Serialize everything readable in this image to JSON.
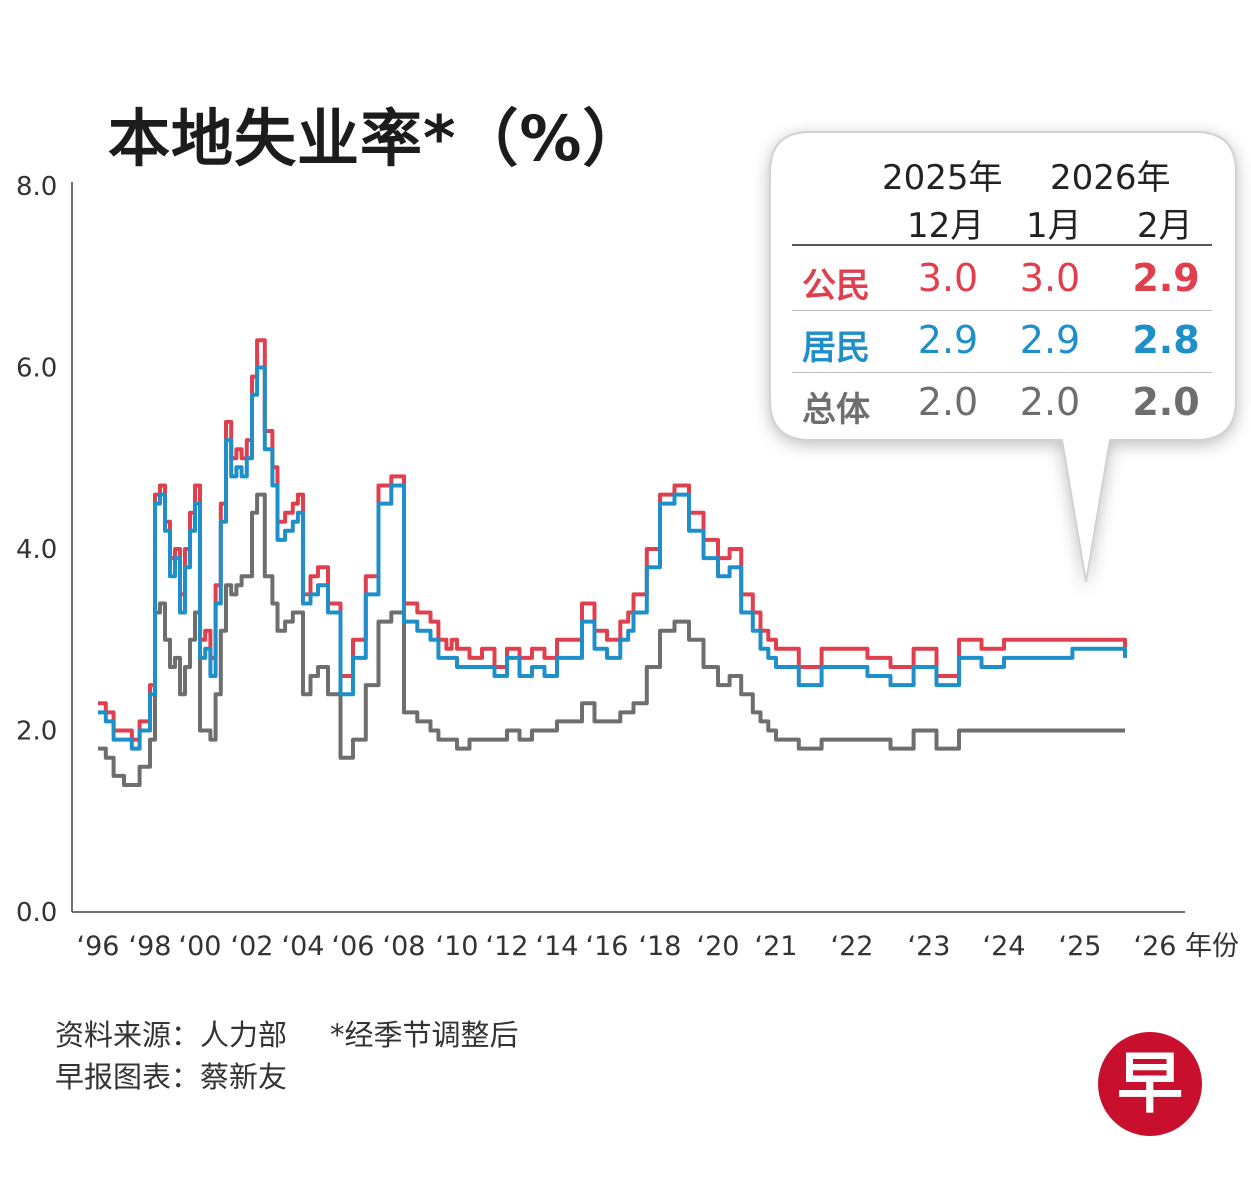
{
  "chart_data": {
    "type": "line",
    "title": "本地失业率*（%）",
    "xlabel": "年份",
    "ylabel": "",
    "ylim": [
      0,
      8
    ],
    "yticks": [
      "0.0",
      "2.0",
      "4.0",
      "6.0",
      "8.0"
    ],
    "xticks": [
      {
        "label": "‘96",
        "t": 1996.0
      },
      {
        "label": "‘98",
        "t": 1998.0
      },
      {
        "label": "‘00",
        "t": 2000.0
      },
      {
        "label": "‘02",
        "t": 2002.0
      },
      {
        "label": "‘04",
        "t": 2004.0
      },
      {
        "label": "‘06",
        "t": 2006.0
      },
      {
        "label": "‘08",
        "t": 2008.0
      },
      {
        "label": "‘10",
        "t": 2010.0
      },
      {
        "label": "‘12",
        "t": 2012.0
      },
      {
        "label": "‘14",
        "t": 2014.0
      },
      {
        "label": "‘16",
        "t": 2016.0
      },
      {
        "label": "‘18",
        "t": 2018.0
      },
      {
        "label": "‘20",
        "t": 2020.0
      },
      {
        "label": "‘21",
        "t": 2021.5
      },
      {
        "label": "‘22",
        "t": 2022.5
      },
      {
        "label": "‘23",
        "t": 2023.5
      },
      {
        "label": "‘24",
        "t": 2024.5
      },
      {
        "label": "‘25",
        "t": 2025.5
      },
      {
        "label": "‘26",
        "t": 2026.5
      }
    ],
    "grid": false,
    "colors": {
      "citizen": "#e0404d",
      "resident": "#1f8fc9",
      "overall": "#6e6e6e"
    },
    "series": [
      {
        "name": "公民",
        "x": [
          1996.0,
          1996.3,
          1996.6,
          1997.0,
          1997.3,
          1997.6,
          1998.0,
          1998.2,
          1998.4,
          1998.6,
          1998.8,
          1999.0,
          1999.2,
          1999.4,
          1999.6,
          1999.8,
          2000.0,
          2000.2,
          2000.4,
          2000.6,
          2000.8,
          2001.0,
          2001.2,
          2001.4,
          2001.6,
          2001.8,
          2002.0,
          2002.2,
          2002.5,
          2002.8,
          2003.0,
          2003.3,
          2003.6,
          2003.8,
          2004.0,
          2004.3,
          2004.6,
          2005.0,
          2005.5,
          2006.0,
          2006.5,
          2007.0,
          2007.5,
          2008.0,
          2008.5,
          2009.0,
          2009.3,
          2009.6,
          2009.8,
          2010.0,
          2010.5,
          2011.0,
          2011.5,
          2012.0,
          2012.5,
          2013.0,
          2013.5,
          2014.0,
          2014.5,
          2015.0,
          2015.5,
          2016.0,
          2016.5,
          2016.8,
          2017.0,
          2017.5,
          2018.0,
          2018.5,
          2019.0,
          2019.5,
          2020.0,
          2020.3,
          2020.6,
          2020.9,
          2021.1,
          2021.3,
          2021.5,
          2021.8,
          2022.1,
          2022.4,
          2022.7,
          2023.0,
          2023.3,
          2023.6,
          2023.9,
          2024.2,
          2024.5,
          2024.8,
          2025.1,
          2025.4,
          2025.7,
          2026.0,
          2026.1
        ],
        "y": [
          2.3,
          2.2,
          2.0,
          2.0,
          1.9,
          2.1,
          2.5,
          4.6,
          4.7,
          4.3,
          3.9,
          4.0,
          3.5,
          4.0,
          4.4,
          4.7,
          3.0,
          3.1,
          2.8,
          3.6,
          4.5,
          5.4,
          5.0,
          5.1,
          5.0,
          5.2,
          5.9,
          6.3,
          5.3,
          4.9,
          4.3,
          4.4,
          4.5,
          4.6,
          3.5,
          3.7,
          3.8,
          3.4,
          2.6,
          3.0,
          3.7,
          4.7,
          4.8,
          3.4,
          3.3,
          3.2,
          3.0,
          2.9,
          3.0,
          2.9,
          2.8,
          2.9,
          2.7,
          2.9,
          2.8,
          2.9,
          2.8,
          3.0,
          3.0,
          3.4,
          3.1,
          3.0,
          3.2,
          3.3,
          3.5,
          4.0,
          4.6,
          4.7,
          4.4,
          4.1,
          3.9,
          4.0,
          3.5,
          3.3,
          3.1,
          3.0,
          2.9,
          2.7,
          2.9,
          2.9,
          2.8,
          2.7,
          2.9,
          2.6,
          3.0,
          2.9,
          3.0,
          3.0,
          3.0,
          3.0,
          3.0,
          3.0,
          2.9
        ]
      },
      {
        "name": "居民",
        "x": [
          1996.0,
          1996.3,
          1996.6,
          1997.0,
          1997.3,
          1997.6,
          1998.0,
          1998.2,
          1998.4,
          1998.6,
          1998.8,
          1999.0,
          1999.2,
          1999.4,
          1999.6,
          1999.8,
          2000.0,
          2000.2,
          2000.4,
          2000.6,
          2000.8,
          2001.0,
          2001.2,
          2001.4,
          2001.6,
          2001.8,
          2002.0,
          2002.2,
          2002.5,
          2002.8,
          2003.0,
          2003.3,
          2003.6,
          2003.8,
          2004.0,
          2004.3,
          2004.6,
          2005.0,
          2005.5,
          2006.0,
          2006.5,
          2007.0,
          2007.5,
          2008.0,
          2008.5,
          2009.0,
          2009.3,
          2009.6,
          2009.8,
          2010.0,
          2010.5,
          2011.0,
          2011.5,
          2012.0,
          2012.5,
          2013.0,
          2013.5,
          2014.0,
          2014.5,
          2015.0,
          2015.5,
          2016.0,
          2016.5,
          2016.8,
          2017.0,
          2017.5,
          2018.0,
          2018.5,
          2019.0,
          2019.5,
          2020.0,
          2020.3,
          2020.6,
          2020.9,
          2021.1,
          2021.3,
          2021.5,
          2021.8,
          2022.1,
          2022.4,
          2022.7,
          2023.0,
          2023.3,
          2023.6,
          2023.9,
          2024.2,
          2024.5,
          2024.8,
          2025.1,
          2025.4,
          2025.7,
          2026.0,
          2026.1
        ],
        "y": [
          2.2,
          2.1,
          1.9,
          1.9,
          1.8,
          2.0,
          2.4,
          4.5,
          4.6,
          4.2,
          3.7,
          3.9,
          3.3,
          3.8,
          4.2,
          4.5,
          2.8,
          2.9,
          2.6,
          3.4,
          4.3,
          5.2,
          4.8,
          4.9,
          4.8,
          5.0,
          5.7,
          6.0,
          5.1,
          4.7,
          4.1,
          4.2,
          4.3,
          4.4,
          3.4,
          3.5,
          3.6,
          3.3,
          2.4,
          2.8,
          3.5,
          4.5,
          4.7,
          3.2,
          3.1,
          3.0,
          2.8,
          2.8,
          2.8,
          2.7,
          2.7,
          2.7,
          2.6,
          2.8,
          2.6,
          2.7,
          2.6,
          2.8,
          2.8,
          3.2,
          2.9,
          2.8,
          3.0,
          3.1,
          3.3,
          3.8,
          4.5,
          4.6,
          4.2,
          3.9,
          3.7,
          3.8,
          3.3,
          3.1,
          2.9,
          2.8,
          2.7,
          2.5,
          2.7,
          2.7,
          2.6,
          2.5,
          2.7,
          2.5,
          2.8,
          2.7,
          2.8,
          2.8,
          2.8,
          2.9,
          2.9,
          2.9,
          2.8
        ]
      },
      {
        "name": "总体",
        "x": [
          1996.0,
          1996.3,
          1996.6,
          1997.0,
          1997.3,
          1997.6,
          1998.0,
          1998.2,
          1998.4,
          1998.6,
          1998.8,
          1999.0,
          1999.2,
          1999.4,
          1999.6,
          1999.8,
          2000.0,
          2000.2,
          2000.4,
          2000.6,
          2000.8,
          2001.0,
          2001.2,
          2001.4,
          2001.6,
          2001.8,
          2002.0,
          2002.2,
          2002.5,
          2002.8,
          2003.0,
          2003.3,
          2003.6,
          2003.8,
          2004.0,
          2004.3,
          2004.6,
          2005.0,
          2005.5,
          2006.0,
          2006.5,
          2007.0,
          2007.5,
          2008.0,
          2008.5,
          2009.0,
          2009.3,
          2009.6,
          2009.8,
          2010.0,
          2010.5,
          2011.0,
          2011.5,
          2012.0,
          2012.5,
          2013.0,
          2013.5,
          2014.0,
          2014.5,
          2015.0,
          2015.5,
          2016.0,
          2016.5,
          2016.8,
          2017.0,
          2017.5,
          2018.0,
          2018.5,
          2019.0,
          2019.5,
          2020.0,
          2020.3,
          2020.6,
          2020.9,
          2021.1,
          2021.3,
          2021.5,
          2021.8,
          2022.1,
          2022.4,
          2022.7,
          2023.0,
          2023.3,
          2023.6,
          2023.9,
          2024.2,
          2024.5,
          2024.8,
          2025.1,
          2025.4,
          2025.7,
          2026.0,
          2026.1
        ],
        "y": [
          1.8,
          1.7,
          1.5,
          1.4,
          1.4,
          1.6,
          1.9,
          3.3,
          3.4,
          3.0,
          2.7,
          2.8,
          2.4,
          2.7,
          3.0,
          3.3,
          2.0,
          2.0,
          1.9,
          2.4,
          3.1,
          3.6,
          3.5,
          3.6,
          3.7,
          3.7,
          4.4,
          4.6,
          3.7,
          3.4,
          3.1,
          3.2,
          3.3,
          3.3,
          2.4,
          2.6,
          2.7,
          2.4,
          1.7,
          1.9,
          2.5,
          3.2,
          3.3,
          2.2,
          2.1,
          2.0,
          1.9,
          1.9,
          1.9,
          1.8,
          1.9,
          1.9,
          1.9,
          2.0,
          1.9,
          2.0,
          2.0,
          2.1,
          2.1,
          2.3,
          2.1,
          2.1,
          2.2,
          2.2,
          2.3,
          2.7,
          3.1,
          3.2,
          3.0,
          2.7,
          2.5,
          2.6,
          2.4,
          2.2,
          2.1,
          2.0,
          1.9,
          1.8,
          1.9,
          1.9,
          1.9,
          1.8,
          2.0,
          1.8,
          2.0,
          2.0,
          2.0,
          2.0,
          2.0,
          2.0,
          2.0,
          2.0,
          2.0
        ]
      }
    ]
  },
  "callout": {
    "year1": "2025年",
    "year2": "2026年",
    "months": [
      "12月",
      "1月",
      "2月"
    ],
    "rows": [
      {
        "label": "公民",
        "values": [
          "3.0",
          "3.0",
          "2.9"
        ],
        "color": "#e0404d"
      },
      {
        "label": "居民",
        "values": [
          "2.9",
          "2.9",
          "2.8"
        ],
        "color": "#1f8fc9"
      },
      {
        "label": "总体",
        "values": [
          "2.0",
          "2.0",
          "2.0"
        ],
        "color": "#6e6e6e"
      }
    ]
  },
  "footer": {
    "source": "资料来源：人力部",
    "note": "*经季节调整后",
    "credit": "早报图表：蔡新友"
  },
  "logo_text": "早"
}
